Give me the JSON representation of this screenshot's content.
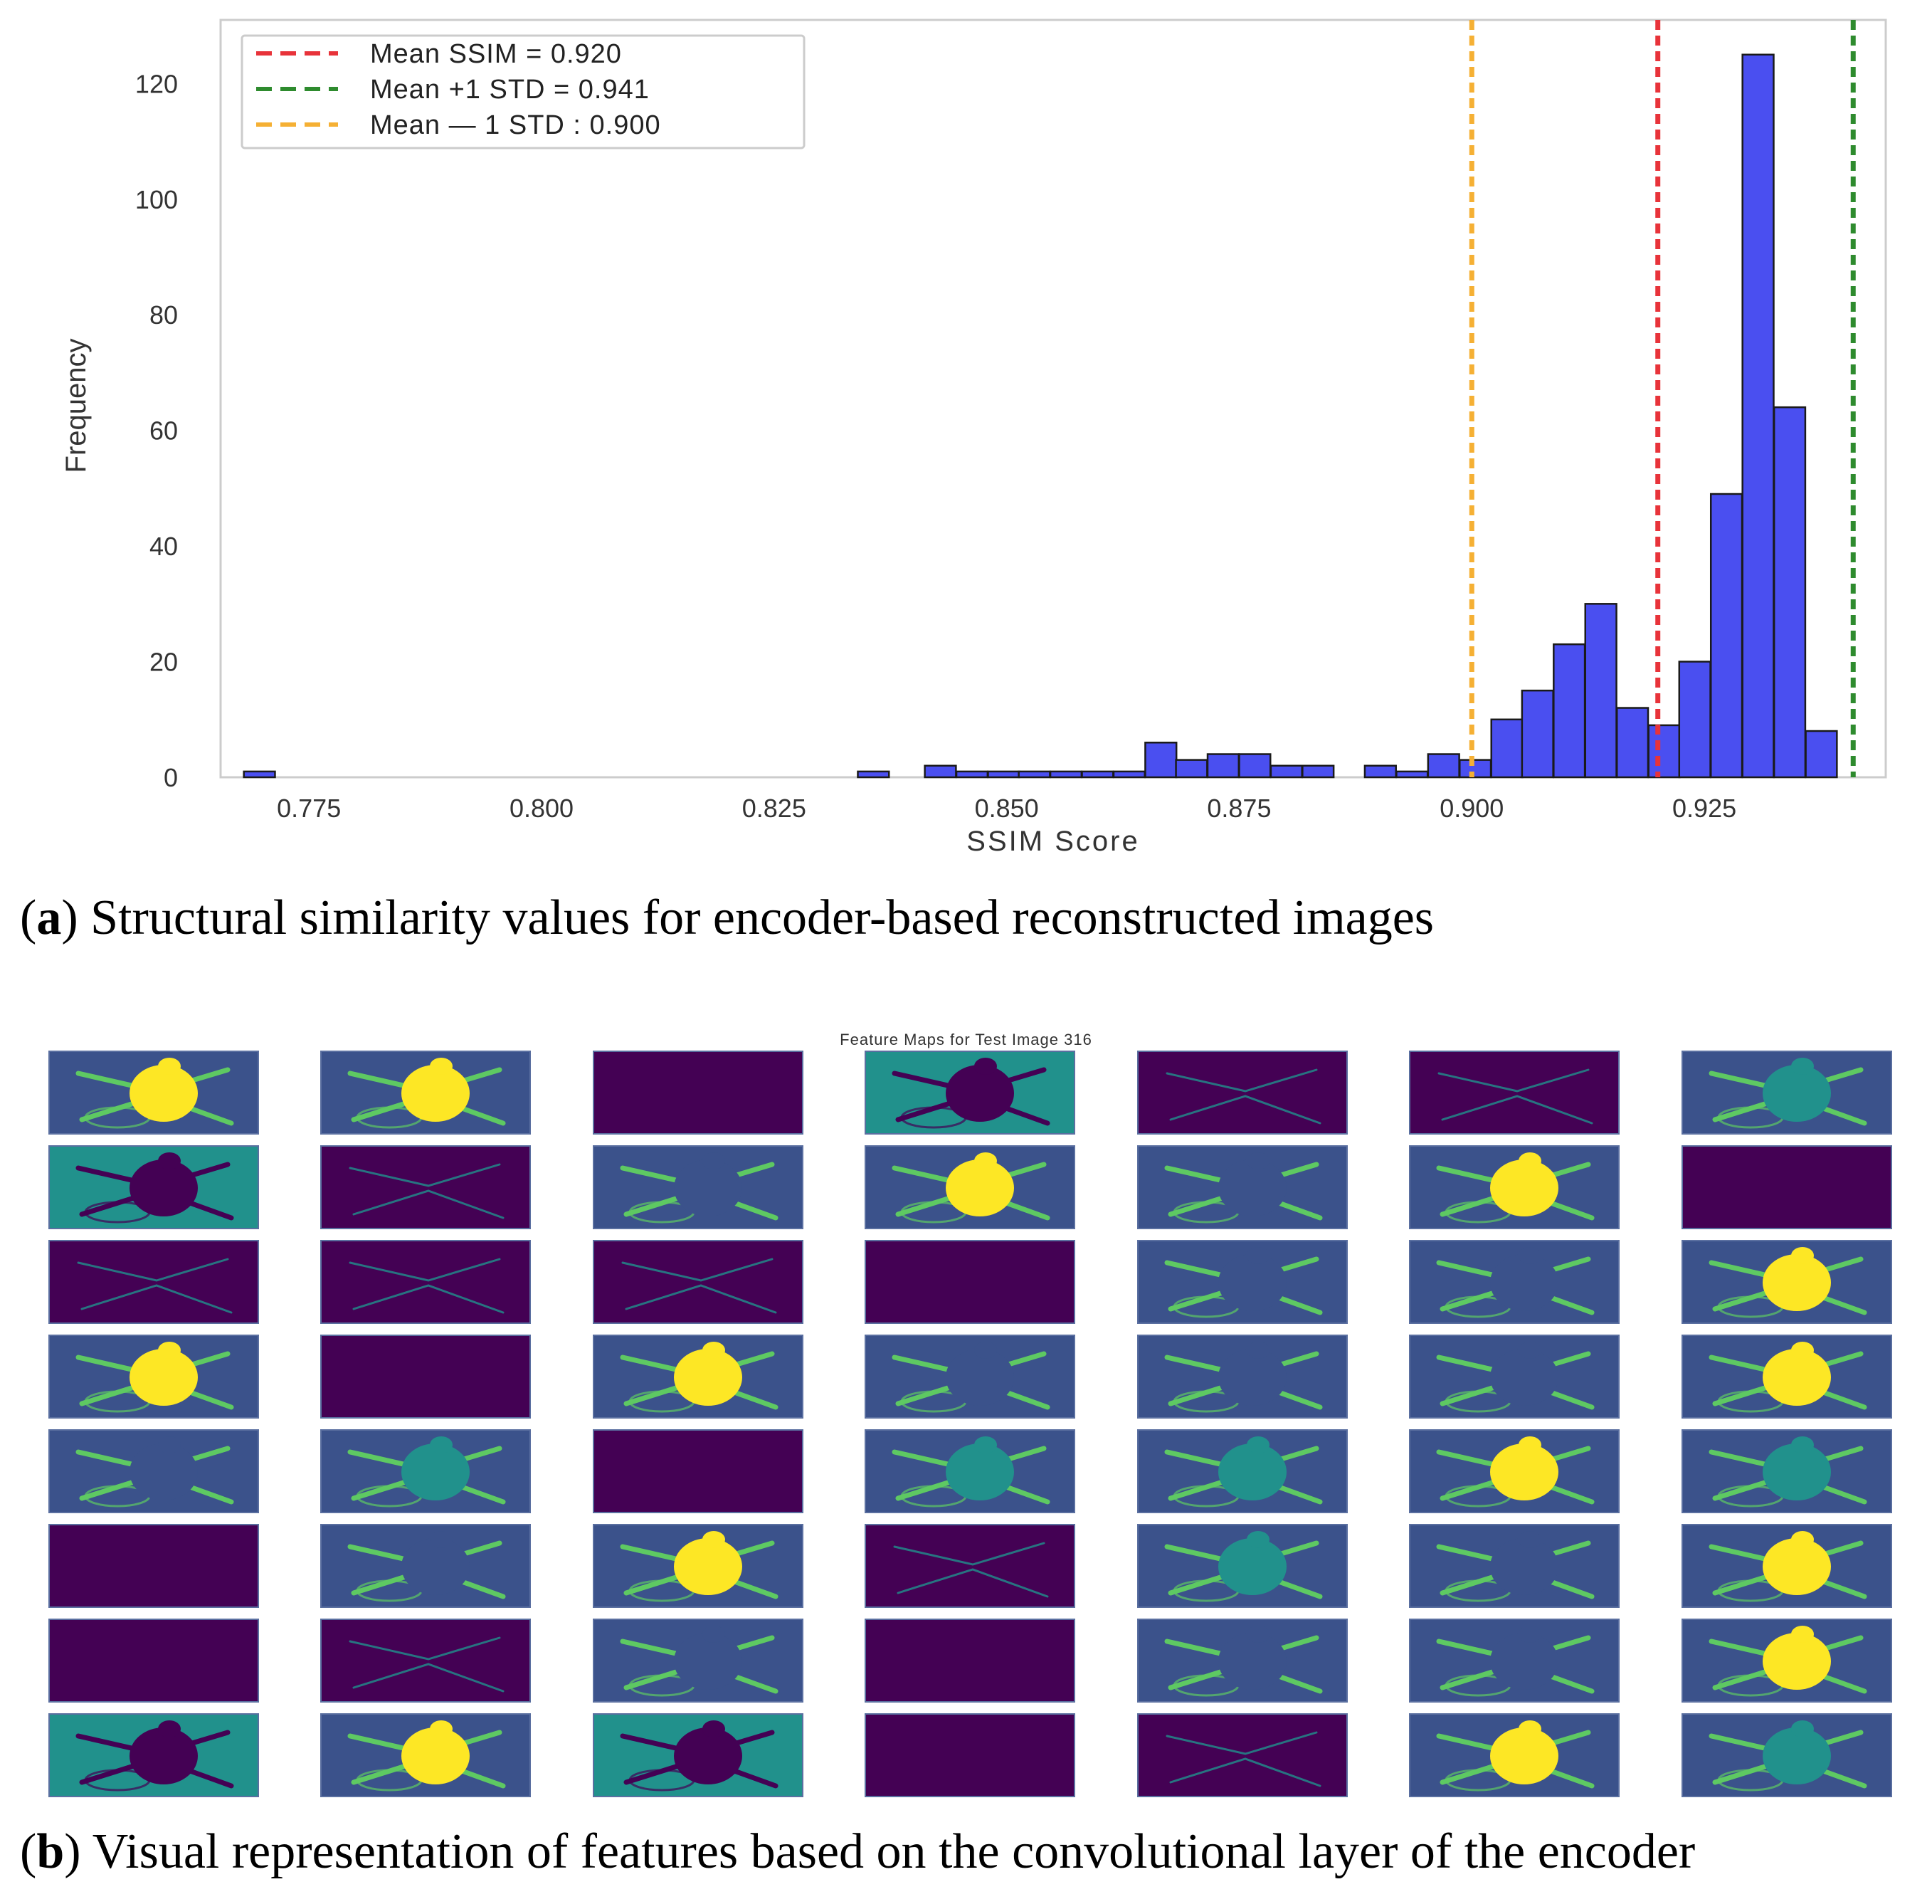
{
  "chart_data": {
    "type": "bar",
    "xlabel": "SSIM Score",
    "ylabel": "Frequency",
    "xlim": [
      0.7655,
      0.9445
    ],
    "ylim": [
      0,
      131
    ],
    "xticks": [
      0.775,
      0.8,
      0.825,
      0.85,
      0.875,
      0.9,
      0.925
    ],
    "xtick_labels": [
      "0.775",
      "0.800",
      "0.825",
      "0.850",
      "0.875",
      "0.900",
      "0.925"
    ],
    "yticks": [
      0,
      20,
      40,
      60,
      80,
      100,
      120
    ],
    "ytick_labels": [
      "0",
      "20",
      "40",
      "60",
      "80",
      "100",
      "120"
    ],
    "grid": false,
    "legend_position": "top-left",
    "bar_color": "#4a4ff0",
    "bin_width": 0.00335,
    "bins": [
      {
        "x": 0.768,
        "count": 1
      },
      {
        "x": 0.834,
        "count": 1
      },
      {
        "x": 0.8412,
        "count": 2
      },
      {
        "x": 0.8446,
        "count": 1
      },
      {
        "x": 0.848,
        "count": 1
      },
      {
        "x": 0.8513,
        "count": 1
      },
      {
        "x": 0.8547,
        "count": 1
      },
      {
        "x": 0.8581,
        "count": 1
      },
      {
        "x": 0.8615,
        "count": 1
      },
      {
        "x": 0.8649,
        "count": 6
      },
      {
        "x": 0.8682,
        "count": 3
      },
      {
        "x": 0.8716,
        "count": 4
      },
      {
        "x": 0.875,
        "count": 4
      },
      {
        "x": 0.8784,
        "count": 2
      },
      {
        "x": 0.8818,
        "count": 2
      },
      {
        "x": 0.8885,
        "count": 2
      },
      {
        "x": 0.8919,
        "count": 1
      },
      {
        "x": 0.8953,
        "count": 4
      },
      {
        "x": 0.8987,
        "count": 3
      },
      {
        "x": 0.9021,
        "count": 10
      },
      {
        "x": 0.9054,
        "count": 15
      },
      {
        "x": 0.9088,
        "count": 23
      },
      {
        "x": 0.9122,
        "count": 30
      },
      {
        "x": 0.9156,
        "count": 12
      },
      {
        "x": 0.919,
        "count": 9
      },
      {
        "x": 0.9223,
        "count": 20
      },
      {
        "x": 0.9257,
        "count": 49
      },
      {
        "x": 0.9291,
        "count": 125
      },
      {
        "x": 0.9325,
        "count": 64
      },
      {
        "x": 0.9359,
        "count": 8
      }
    ],
    "reference_lines": [
      {
        "x": 0.92,
        "color": "#e8333a",
        "label": "Mean SSIM = 0.920"
      },
      {
        "x": 0.941,
        "color": "#2e8b2e",
        "label": "Mean +1 STD  = 0.941"
      },
      {
        "x": 0.9,
        "color": "#f5b034",
        "label": "Mean — 1 STD  : 0.900"
      }
    ],
    "legend": [
      {
        "label": "Mean SSIM = 0.920",
        "color": "#e8333a"
      },
      {
        "label": "Mean +1 STD  = 0.941",
        "color": "#2e8b2e"
      },
      {
        "label": "Mean — 1 STD  : 0.900",
        "color": "#f5b034"
      }
    ]
  },
  "captions": {
    "a_letter": "a",
    "a_text": "Structural similarity values for encoder-based reconstructed images",
    "b_letter": "b",
    "b_text": "Visual representation of features based on the convolutional layer of the encoder"
  },
  "feature_maps": {
    "title": "Feature Maps for Test Image 316",
    "rows": 8,
    "cols": 7,
    "colors": {
      "empty": "#440154",
      "background": "#3b528b",
      "teal": "#21918c",
      "green": "#5ec962",
      "yellow": "#fde725"
    },
    "cells": [
      [
        "bright",
        "bright",
        "empty",
        "dark",
        "sparse",
        "sparse",
        "teal"
      ],
      [
        "dark",
        "sparse",
        "edge",
        "bright",
        "edge",
        "bright",
        "empty"
      ],
      [
        "sparse",
        "sparse",
        "sparse",
        "empty",
        "edge",
        "edge",
        "bright"
      ],
      [
        "bright",
        "empty",
        "bright",
        "edge",
        "edge",
        "edge",
        "bright"
      ],
      [
        "edge",
        "teal",
        "empty",
        "teal",
        "teal",
        "bright",
        "teal"
      ],
      [
        "empty",
        "edge",
        "bright",
        "sparse",
        "teal",
        "edge",
        "bright"
      ],
      [
        "empty",
        "sparse",
        "edge",
        "empty",
        "edge",
        "edge",
        "bright"
      ],
      [
        "dark",
        "bright",
        "dark",
        "empty",
        "sparse",
        "bright",
        "teal"
      ]
    ]
  }
}
